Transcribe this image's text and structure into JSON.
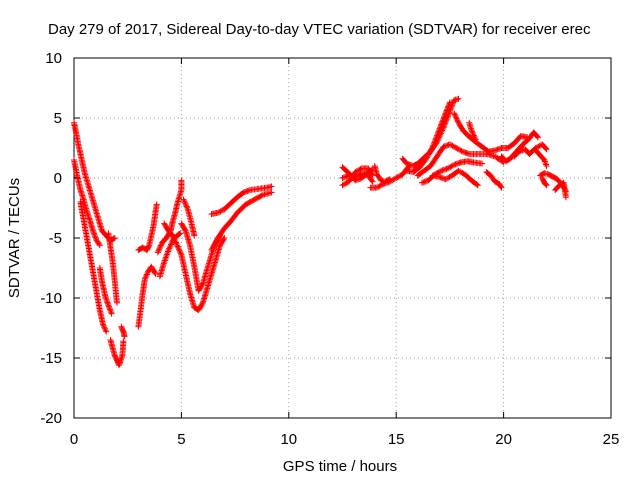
{
  "chart_data": {
    "type": "scatter",
    "title": "Day 279 of 2017, Sidereal Day-to-day VTEC variation (SDTVAR) for receiver erec",
    "xlabel": "GPS time / hours",
    "ylabel": "SDTVAR / TECUs",
    "xlim": [
      0,
      25
    ],
    "ylim": [
      -20,
      10
    ],
    "xticks": [
      "0",
      "5",
      "10",
      "15",
      "20",
      "25"
    ],
    "yticks": [
      "10",
      "5",
      "0",
      "-5",
      "-10",
      "-15",
      "-20"
    ],
    "grid": true,
    "marker": "+",
    "color": "#ff0000",
    "series": [
      {
        "name": "SDTVAR",
        "tracks": [
          [
            [
              0.0,
              4.6
            ],
            [
              0.1,
              3.8
            ],
            [
              0.2,
              2.8
            ],
            [
              0.35,
              1.6
            ],
            [
              0.5,
              0.4
            ],
            [
              0.7,
              -0.8
            ],
            [
              0.9,
              -2.0
            ],
            [
              1.1,
              -3.2
            ],
            [
              1.3,
              -4.4
            ],
            [
              1.5,
              -4.8
            ],
            [
              1.7,
              -5.2
            ],
            [
              1.9,
              -5.0
            ]
          ],
          [
            [
              0.0,
              1.5
            ],
            [
              0.15,
              0.2
            ],
            [
              0.3,
              -1.0
            ],
            [
              0.45,
              -1.8
            ],
            [
              0.6,
              -2.8
            ],
            [
              0.75,
              -3.6
            ],
            [
              0.9,
              -4.5
            ],
            [
              1.05,
              -5.2
            ],
            [
              1.2,
              -5.6
            ]
          ],
          [
            [
              0.3,
              -2.0
            ],
            [
              0.45,
              -3.5
            ],
            [
              0.6,
              -5.0
            ],
            [
              0.75,
              -6.5
            ],
            [
              0.9,
              -8.0
            ],
            [
              1.05,
              -9.5
            ],
            [
              1.2,
              -11.0
            ],
            [
              1.35,
              -12.2
            ],
            [
              1.5,
              -12.8
            ]
          ],
          [
            [
              1.2,
              -7.5
            ],
            [
              1.3,
              -8.6
            ],
            [
              1.45,
              -9.8
            ],
            [
              1.6,
              -10.6
            ],
            [
              1.75,
              -11.3
            ]
          ],
          [
            [
              1.6,
              -4.6
            ],
            [
              1.7,
              -5.8
            ],
            [
              1.8,
              -7.0
            ],
            [
              1.9,
              -8.6
            ],
            [
              2.0,
              -10.4
            ]
          ],
          [
            [
              1.7,
              -13.5
            ],
            [
              1.8,
              -14.2
            ],
            [
              1.9,
              -14.8
            ],
            [
              2.0,
              -15.2
            ],
            [
              2.1,
              -15.6
            ],
            [
              2.25,
              -14.8
            ],
            [
              2.3,
              -13.6
            ]
          ],
          [
            [
              2.2,
              -12.4
            ],
            [
              2.3,
              -12.8
            ],
            [
              2.35,
              -13.2
            ]
          ],
          [
            [
              3.0,
              -12.4
            ],
            [
              3.1,
              -11.0
            ],
            [
              3.2,
              -9.6
            ],
            [
              3.3,
              -8.4
            ],
            [
              3.45,
              -7.8
            ],
            [
              3.6,
              -7.4
            ],
            [
              3.8,
              -8.0
            ]
          ],
          [
            [
              3.0,
              -6.0
            ],
            [
              3.2,
              -5.8
            ],
            [
              3.4,
              -6.0
            ],
            [
              3.5,
              -5.6
            ],
            [
              3.7,
              -4.0
            ],
            [
              3.8,
              -2.8
            ],
            [
              3.85,
              -2.2
            ]
          ],
          [
            [
              3.9,
              -6.2
            ],
            [
              4.1,
              -5.4
            ],
            [
              4.3,
              -5.0
            ],
            [
              4.5,
              -4.4
            ],
            [
              4.6,
              -3.6
            ],
            [
              4.7,
              -3.0
            ],
            [
              4.8,
              -2.2
            ],
            [
              4.9,
              -1.6
            ],
            [
              5.0,
              -1.0
            ],
            [
              5.0,
              -0.2
            ]
          ],
          [
            [
              4.0,
              -8.2
            ],
            [
              4.2,
              -7.0
            ],
            [
              4.4,
              -6.0
            ],
            [
              4.6,
              -5.2
            ],
            [
              4.8,
              -4.8
            ],
            [
              4.95,
              -4.6
            ]
          ],
          [
            [
              4.2,
              -3.8
            ],
            [
              4.4,
              -4.4
            ],
            [
              4.6,
              -4.8
            ],
            [
              4.8,
              -5.6
            ],
            [
              5.0,
              -6.4
            ],
            [
              5.2,
              -8.0
            ],
            [
              5.4,
              -9.6
            ],
            [
              5.6,
              -10.8
            ],
            [
              5.8,
              -11.0
            ],
            [
              6.0,
              -10.4
            ],
            [
              6.2,
              -9.2
            ],
            [
              6.4,
              -8.0
            ],
            [
              6.6,
              -6.8
            ],
            [
              6.8,
              -5.6
            ],
            [
              7.0,
              -5.0
            ]
          ],
          [
            [
              5.0,
              -3.8
            ],
            [
              5.2,
              -4.4
            ],
            [
              5.4,
              -5.6
            ],
            [
              5.6,
              -7.4
            ],
            [
              5.8,
              -9.4
            ],
            [
              6.0,
              -8.8
            ],
            [
              6.2,
              -7.6
            ],
            [
              6.4,
              -6.4
            ],
            [
              6.6,
              -5.4
            ],
            [
              6.8,
              -4.8
            ]
          ],
          [
            [
              5.1,
              -1.8
            ],
            [
              5.3,
              -2.6
            ],
            [
              5.5,
              -4.0
            ],
            [
              5.6,
              -4.8
            ]
          ],
          [
            [
              6.4,
              -6.0
            ],
            [
              6.7,
              -5.0
            ],
            [
              7.0,
              -4.2
            ],
            [
              7.3,
              -3.6
            ],
            [
              7.6,
              -2.9
            ],
            [
              8.0,
              -2.2
            ],
            [
              8.4,
              -1.8
            ],
            [
              8.8,
              -1.4
            ],
            [
              9.2,
              -1.2
            ]
          ],
          [
            [
              6.4,
              -3.0
            ],
            [
              6.7,
              -2.9
            ],
            [
              7.0,
              -2.6
            ],
            [
              7.3,
              -2.1
            ],
            [
              7.6,
              -1.6
            ],
            [
              7.9,
              -1.2
            ],
            [
              8.2,
              -1.0
            ],
            [
              8.6,
              -0.9
            ],
            [
              9.0,
              -0.8
            ],
            [
              9.2,
              -0.7
            ]
          ],
          [
            [
              12.5,
              0.0
            ],
            [
              12.8,
              0.2
            ],
            [
              13.1,
              0.1
            ],
            [
              13.4,
              0.4
            ],
            [
              13.7,
              0.2
            ],
            [
              13.9,
              -0.3
            ]
          ],
          [
            [
              12.5,
              0.9
            ],
            [
              12.8,
              0.4
            ],
            [
              13.1,
              -0.2
            ],
            [
              13.4,
              0.0
            ],
            [
              13.7,
              0.5
            ],
            [
              13.9,
              0.7
            ]
          ],
          [
            [
              12.5,
              -0.6
            ],
            [
              12.8,
              -0.3
            ],
            [
              13.1,
              0.5
            ],
            [
              13.4,
              0.8
            ],
            [
              13.7,
              0.8
            ],
            [
              13.9,
              0.2
            ]
          ],
          [
            [
              14.0,
              1.0
            ],
            [
              14.1,
              0.3
            ],
            [
              14.3,
              -0.2
            ],
            [
              14.5,
              -0.3
            ],
            [
              14.7,
              -0.1
            ]
          ],
          [
            [
              13.8,
              -0.8
            ],
            [
              14.1,
              -0.8
            ],
            [
              14.4,
              -0.5
            ],
            [
              14.7,
              -0.3
            ],
            [
              15.0,
              0.0
            ],
            [
              15.3,
              0.3
            ],
            [
              15.6,
              1.0
            ]
          ],
          [
            [
              15.3,
              1.6
            ],
            [
              15.5,
              1.2
            ],
            [
              15.8,
              1.0
            ],
            [
              16.0,
              1.2
            ],
            [
              16.3,
              1.7
            ],
            [
              16.6,
              2.2
            ],
            [
              16.9,
              3.0
            ],
            [
              17.2,
              4.2
            ],
            [
              17.5,
              5.6
            ],
            [
              17.7,
              6.5
            ],
            [
              17.9,
              6.6
            ]
          ],
          [
            [
              15.5,
              0.6
            ],
            [
              15.8,
              0.5
            ],
            [
              16.1,
              0.9
            ],
            [
              16.4,
              1.6
            ],
            [
              16.7,
              2.6
            ],
            [
              17.0,
              4.0
            ],
            [
              17.3,
              5.4
            ],
            [
              17.5,
              6.3
            ]
          ],
          [
            [
              16.0,
              0.2
            ],
            [
              16.3,
              0.6
            ],
            [
              16.6,
              1.0
            ],
            [
              16.9,
              1.8
            ],
            [
              17.2,
              2.6
            ],
            [
              17.5,
              2.8
            ],
            [
              17.8,
              2.5
            ],
            [
              18.1,
              2.2
            ],
            [
              18.4,
              2.0
            ],
            [
              18.8,
              2.0
            ],
            [
              19.2,
              2.0
            ],
            [
              19.6,
              1.8
            ],
            [
              20.0,
              1.3
            ]
          ],
          [
            [
              16.2,
              -0.4
            ],
            [
              16.5,
              -0.2
            ],
            [
              16.8,
              0.3
            ],
            [
              17.1,
              0.6
            ],
            [
              17.4,
              0.8
            ],
            [
              17.7,
              1.1
            ],
            [
              18.0,
              1.3
            ],
            [
              18.3,
              1.4
            ],
            [
              18.6,
              1.3
            ],
            [
              19.0,
              1.2
            ]
          ],
          [
            [
              16.7,
              0.2
            ],
            [
              17.0,
              0.1
            ],
            [
              17.3,
              -0.1
            ],
            [
              17.6,
              0.2
            ],
            [
              17.9,
              0.6
            ],
            [
              18.2,
              0.3
            ],
            [
              18.5,
              -0.2
            ],
            [
              18.8,
              -0.6
            ]
          ],
          [
            [
              17.7,
              5.4
            ],
            [
              17.9,
              4.6
            ],
            [
              18.1,
              4.0
            ],
            [
              18.3,
              3.6
            ],
            [
              18.5,
              3.3
            ],
            [
              18.7,
              3.0
            ],
            [
              19.0,
              2.6
            ],
            [
              19.3,
              2.2
            ],
            [
              19.6,
              2.3
            ],
            [
              19.9,
              2.5
            ],
            [
              20.2,
              2.5
            ],
            [
              20.5,
              2.9
            ],
            [
              20.8,
              3.5
            ],
            [
              21.1,
              3.4
            ]
          ],
          [
            [
              18.4,
              4.6
            ],
            [
              18.5,
              4.0
            ],
            [
              18.7,
              3.2
            ]
          ],
          [
            [
              19.2,
              0.5
            ],
            [
              19.4,
              0.2
            ],
            [
              19.6,
              -0.3
            ],
            [
              19.8,
              -0.5
            ],
            [
              19.9,
              -0.8
            ]
          ],
          [
            [
              19.9,
              1.8
            ],
            [
              20.1,
              1.4
            ],
            [
              20.3,
              1.6
            ],
            [
              20.6,
              2.2
            ],
            [
              20.9,
              2.8
            ],
            [
              21.2,
              3.3
            ],
            [
              21.4,
              3.8
            ],
            [
              21.6,
              3.4
            ]
          ],
          [
            [
              20.5,
              1.8
            ],
            [
              20.7,
              2.2
            ],
            [
              21.0,
              2.4
            ],
            [
              21.2,
              2.0
            ],
            [
              21.5,
              2.5
            ],
            [
              21.8,
              2.8
            ],
            [
              22.0,
              2.4
            ]
          ],
          [
            [
              21.7,
              0.2
            ],
            [
              21.9,
              0.4
            ],
            [
              22.1,
              0.3
            ],
            [
              22.3,
              0.1
            ],
            [
              22.5,
              -0.1
            ],
            [
              22.7,
              -0.5
            ],
            [
              22.9,
              -1.1
            ]
          ],
          [
            [
              21.5,
              2.3
            ],
            [
              21.7,
              1.9
            ],
            [
              21.9,
              1.5
            ],
            [
              22.0,
              1.0
            ]
          ],
          [
            [
              21.8,
              0.0
            ],
            [
              21.9,
              -0.4
            ],
            [
              22.0,
              -0.6
            ]
          ],
          [
            [
              22.4,
              -1.0
            ],
            [
              22.6,
              -0.6
            ],
            [
              22.8,
              -0.4
            ],
            [
              22.9,
              -1.6
            ]
          ]
        ]
      }
    ]
  }
}
